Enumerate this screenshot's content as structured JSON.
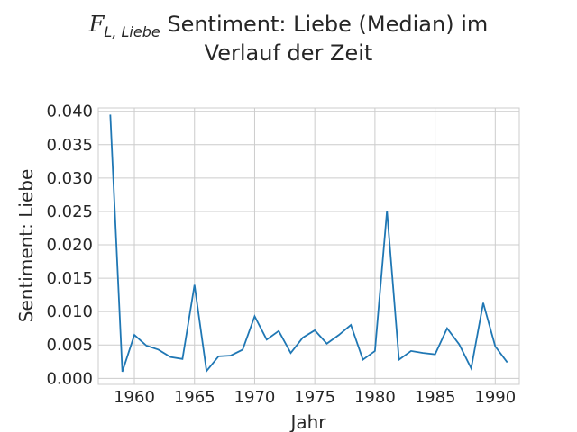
{
  "chart_data": {
    "type": "line",
    "title_symbol": "F",
    "title_subscript": "L, Liebe",
    "title_line1_rest": "Sentiment: Liebe (Median) im",
    "title_line2": "Verlauf der Zeit",
    "xlabel": "Jahr",
    "ylabel": "Sentiment: Liebe",
    "xlim": [
      1957,
      1992
    ],
    "ylim": [
      -0.0009,
      0.0405
    ],
    "x_ticks": [
      1960,
      1965,
      1970,
      1975,
      1980,
      1985,
      1990
    ],
    "y_ticks": [
      0.0,
      0.005,
      0.01,
      0.015,
      0.02,
      0.025,
      0.03,
      0.035,
      0.04
    ],
    "y_tick_labels": [
      "0.000",
      "0.005",
      "0.010",
      "0.015",
      "0.020",
      "0.025",
      "0.030",
      "0.035",
      "0.040"
    ],
    "grid": true,
    "color": "#1f77b4",
    "x": [
      1958,
      1959,
      1960,
      1961,
      1962,
      1963,
      1964,
      1965,
      1966,
      1967,
      1968,
      1969,
      1970,
      1971,
      1972,
      1973,
      1974,
      1975,
      1976,
      1977,
      1978,
      1979,
      1980,
      1981,
      1982,
      1983,
      1984,
      1985,
      1986,
      1987,
      1988,
      1989,
      1990,
      1991
    ],
    "y": [
      0.0395,
      0.001,
      0.0065,
      0.0049,
      0.0043,
      0.0032,
      0.0029,
      0.014,
      0.0011,
      0.0033,
      0.0034,
      0.0043,
      0.0093,
      0.0058,
      0.0071,
      0.0038,
      0.0061,
      0.0072,
      0.0052,
      0.0065,
      0.008,
      0.0028,
      0.0041,
      0.0251,
      0.0028,
      0.0041,
      0.0038,
      0.0036,
      0.0075,
      0.0051,
      0.0015,
      0.0113,
      0.0048,
      0.0024
    ]
  }
}
